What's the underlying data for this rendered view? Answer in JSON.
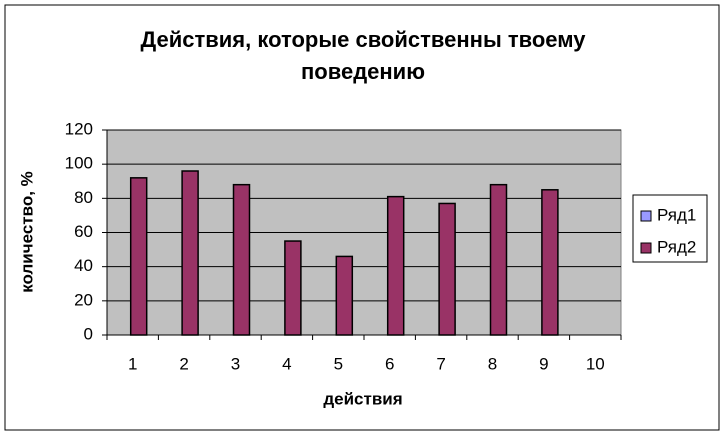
{
  "chart_data": {
    "type": "bar",
    "title": "Действия, которые свойственны твоему поведению",
    "x_label": "действия",
    "y_label": "количество, %",
    "categories": [
      "1",
      "2",
      "3",
      "4",
      "5",
      "6",
      "7",
      "8",
      "9",
      "10"
    ],
    "series": [
      {
        "name": "Ряд1",
        "color": "#9999ff",
        "values": [
          null,
          null,
          null,
          null,
          null,
          null,
          null,
          null,
          null,
          null
        ]
      },
      {
        "name": "Ряд2",
        "color": "#993366",
        "values": [
          92,
          96,
          88,
          55,
          46,
          81,
          77,
          88,
          85,
          null
        ]
      }
    ],
    "ylim": [
      0,
      120
    ],
    "yticks": [
      0,
      20,
      40,
      60,
      80,
      100,
      120
    ],
    "grid": true,
    "legend": "right"
  }
}
